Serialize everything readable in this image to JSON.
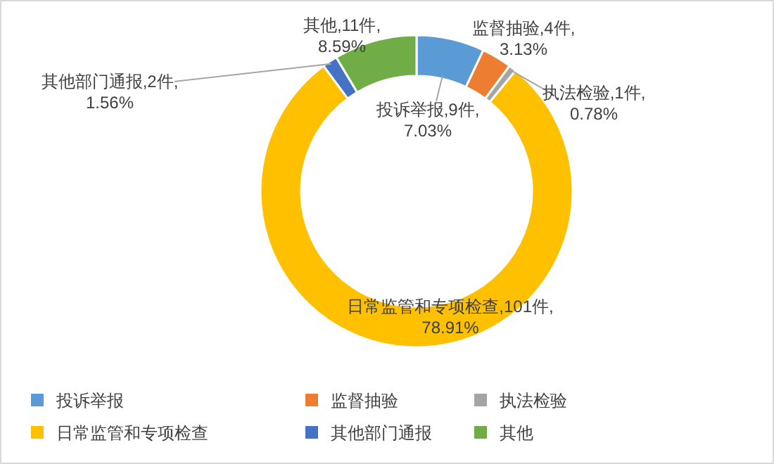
{
  "chart_data": {
    "type": "donut",
    "categories": [
      "投诉举报",
      "监督抽验",
      "执法检验",
      "日常监管和专项检查",
      "其他部门通报",
      "其他"
    ],
    "values": [
      9,
      4,
      1,
      101,
      2,
      11
    ],
    "colors": [
      "#5b9bd5",
      "#ed7d31",
      "#a5a5a5",
      "#ffc000",
      "#4472c4",
      "#70ad47"
    ],
    "value_labels": [
      "投诉举报,9件,\n7.03%",
      "监督抽验,4件,\n3.13%",
      "执法检验,1件,\n0.78%",
      "日常监管和专项检查,101件,\n78.91%",
      "其他部门通报,2件,\n1.56%",
      "其他,11件,\n8.59%"
    ],
    "legend": "bottom"
  }
}
